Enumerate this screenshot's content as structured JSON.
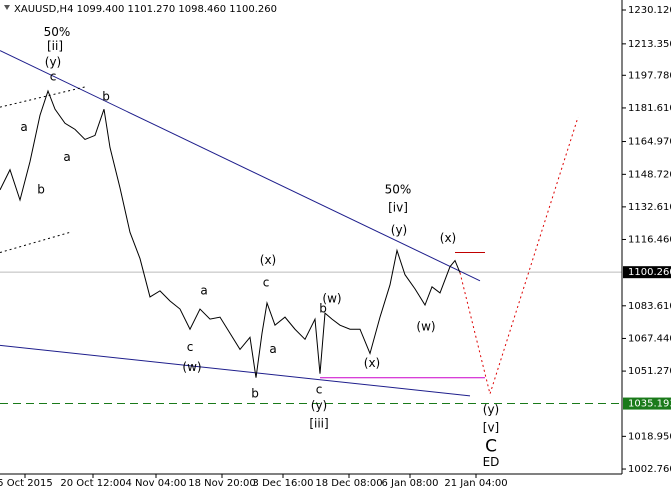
{
  "chart_data": {
    "type": "line",
    "title": "XAUUSD,H4  1099.400 1101.270 1098.460 1100.260",
    "xlim": [
      0,
      124.4
    ],
    "ylim": [
      1000.3,
      1235.07
    ],
    "xticks": [
      {
        "value": 5,
        "label": "5 Oct 2015"
      },
      {
        "value": 18.6,
        "label": "20 Oct 12:00"
      },
      {
        "value": 31.2,
        "label": "4 Nov 04:00"
      },
      {
        "value": 44.4,
        "label": "18 Nov 20:00"
      },
      {
        "value": 56.6,
        "label": "3 Dec 16:00"
      },
      {
        "value": 69.8,
        "label": "18 Dec 08:00"
      },
      {
        "value": 82,
        "label": "6 Jan 08:00"
      },
      {
        "value": 95.2,
        "label": "21 Jan 04:00"
      }
    ],
    "yticks": [
      {
        "value": 1230.12,
        "label": "1230.120"
      },
      {
        "value": 1213.35,
        "label": "1213.350"
      },
      {
        "value": 1197.78,
        "label": "1197.780"
      },
      {
        "value": 1181.61,
        "label": "1181.610"
      },
      {
        "value": 1164.97,
        "label": "1164.970"
      },
      {
        "value": 1148.72,
        "label": "1148.720"
      },
      {
        "value": 1132.61,
        "label": "1132.610"
      },
      {
        "value": 1116.46,
        "label": "1116.460"
      },
      {
        "value": 1083.61,
        "label": "1083.610"
      },
      {
        "value": 1067.44,
        "label": "1067.440"
      },
      {
        "value": 1051.27,
        "label": "1051.270"
      },
      {
        "value": 1018.95,
        "label": "1018.950"
      },
      {
        "value": 1002.76,
        "label": "1002.760"
      }
    ],
    "current_price": {
      "value": 1100.26,
      "label": "1100.260",
      "color": "#000000"
    },
    "level": {
      "value": 1035.193,
      "color": "#1a7a1a"
    },
    "series": [
      {
        "color": "#000000",
        "x": [
          0,
          2,
          4,
          6,
          8,
          9.6,
          11,
          13,
          15,
          17,
          19,
          20.8,
          22,
          24,
          26,
          28,
          30,
          32,
          34,
          36,
          38,
          40,
          42,
          44,
          46,
          48,
          50,
          51.2,
          52.4,
          53.4,
          55,
          57,
          59,
          61,
          63,
          64,
          65,
          66.4,
          68,
          70,
          72,
          74,
          76,
          78,
          79.4,
          81,
          83,
          85,
          86.4,
          88,
          90,
          91,
          92
        ],
        "values": [
          1141,
          1151,
          1136,
          1155,
          1178,
          1190,
          1181,
          1174,
          1171,
          1166,
          1168,
          1181,
          1162,
          1142,
          1120,
          1107,
          1088,
          1091,
          1086,
          1082,
          1072,
          1082,
          1077,
          1078,
          1070,
          1062,
          1068,
          1048,
          1070,
          1085,
          1074,
          1078,
          1072,
          1067,
          1077,
          1050,
          1080,
          1077,
          1074,
          1072,
          1072,
          1060,
          1078,
          1094,
          1111,
          1099,
          1092,
          1084,
          1093,
          1090,
          1103,
          1106,
          1100
        ]
      }
    ],
    "lines": [
      {
        "color": "#1e1e8c",
        "style": "solid",
        "x": [
          0,
          96
        ],
        "y": [
          1210,
          1096
        ]
      },
      {
        "color": "#1e1e8c",
        "style": "solid",
        "x": [
          0,
          94
        ],
        "y": [
          1064,
          1039
        ]
      },
      {
        "color": "#000000",
        "style": "dotted",
        "x": [
          0,
          17
        ],
        "y": [
          1182,
          1192
        ]
      },
      {
        "color": "#000000",
        "style": "dotted",
        "x": [
          0,
          14
        ],
        "y": [
          1110,
          1120
        ]
      },
      {
        "color": "#cc00cc",
        "style": "solid",
        "x": [
          64,
          97
        ],
        "y": [
          1048,
          1048
        ]
      },
      {
        "color": "#c00000",
        "style": "solid",
        "x": [
          91,
          97
        ],
        "y": [
          1110,
          1110
        ]
      },
      {
        "color": "#dd0000",
        "style": "dotted",
        "x": [
          92,
          98,
          115.6
        ],
        "y": [
          1100,
          1040,
          1177
        ]
      }
    ],
    "annotations": [
      {
        "text": "50%",
        "x": 11.4,
        "y": 1219,
        "color": "#1e1e8c"
      },
      {
        "text": "[ii]",
        "x": 11,
        "y": 1212,
        "color": "#2e8b2e"
      },
      {
        "text": "(y)",
        "x": 10.6,
        "y": 1204,
        "color": "#1e1e8c"
      },
      {
        "text": "c",
        "x": 10.6,
        "y": 1197,
        "color": "#8b1a1a"
      },
      {
        "text": "a",
        "x": 4.8,
        "y": 1172,
        "color": "#8b1a1a"
      },
      {
        "text": "b",
        "x": 8.2,
        "y": 1141,
        "color": "#8b1a1a"
      },
      {
        "text": "a",
        "x": 13.4,
        "y": 1157,
        "color": "#8b1a1a"
      },
      {
        "text": "b",
        "x": 21.2,
        "y": 1187,
        "color": "#8b1a1a"
      },
      {
        "text": "a",
        "x": 40.8,
        "y": 1091,
        "color": "#8b1a1a"
      },
      {
        "text": "c",
        "x": 38,
        "y": 1063,
        "color": "#8b1a1a"
      },
      {
        "text": "(w)",
        "x": 38.4,
        "y": 1053,
        "color": "#1e1e8c"
      },
      {
        "text": "b",
        "x": 51,
        "y": 1040,
        "color": "#8b1a1a"
      },
      {
        "text": "(x)",
        "x": 53.6,
        "y": 1106,
        "color": "#1e1e8c"
      },
      {
        "text": "c",
        "x": 53.2,
        "y": 1095,
        "color": "#8b1a1a"
      },
      {
        "text": "a",
        "x": 54.6,
        "y": 1062,
        "color": "#8b1a1a"
      },
      {
        "text": "(w)",
        "x": 66.4,
        "y": 1087,
        "color": "#1e1e8c"
      },
      {
        "text": "b",
        "x": 64.6,
        "y": 1082,
        "color": "#8b1a1a"
      },
      {
        "text": "c",
        "x": 63.8,
        "y": 1042,
        "color": "#8b1a1a"
      },
      {
        "text": "(y)",
        "x": 63.8,
        "y": 1034,
        "color": "#1e1e8c"
      },
      {
        "text": "[iii]",
        "x": 63.8,
        "y": 1025,
        "color": "#2e8b2e"
      },
      {
        "text": "(x)",
        "x": 74.4,
        "y": 1055,
        "color": "#1e1e8c"
      },
      {
        "text": "(w)",
        "x": 85.2,
        "y": 1073,
        "color": "#1e1e8c"
      },
      {
        "text": "50%",
        "x": 79.6,
        "y": 1141,
        "color": "#1e1e8c"
      },
      {
        "text": "[iv]",
        "x": 79.6,
        "y": 1132,
        "color": "#2e8b2e"
      },
      {
        "text": "(y)",
        "x": 79.8,
        "y": 1121,
        "color": "#1e1e8c"
      },
      {
        "text": "(x)",
        "x": 89.6,
        "y": 1117,
        "color": "#1e1e8c"
      },
      {
        "text": "(y)",
        "x": 98.2,
        "y": 1032,
        "color": "#1e1e8c"
      },
      {
        "text": "[v]",
        "x": 98.2,
        "y": 1023,
        "color": "#2e8b2e"
      },
      {
        "text": "C",
        "x": 98.2,
        "y": 1014,
        "color": "#c00000"
      },
      {
        "text": "ED",
        "x": 98.2,
        "y": 1006,
        "color": "#1e1e8c"
      }
    ]
  }
}
